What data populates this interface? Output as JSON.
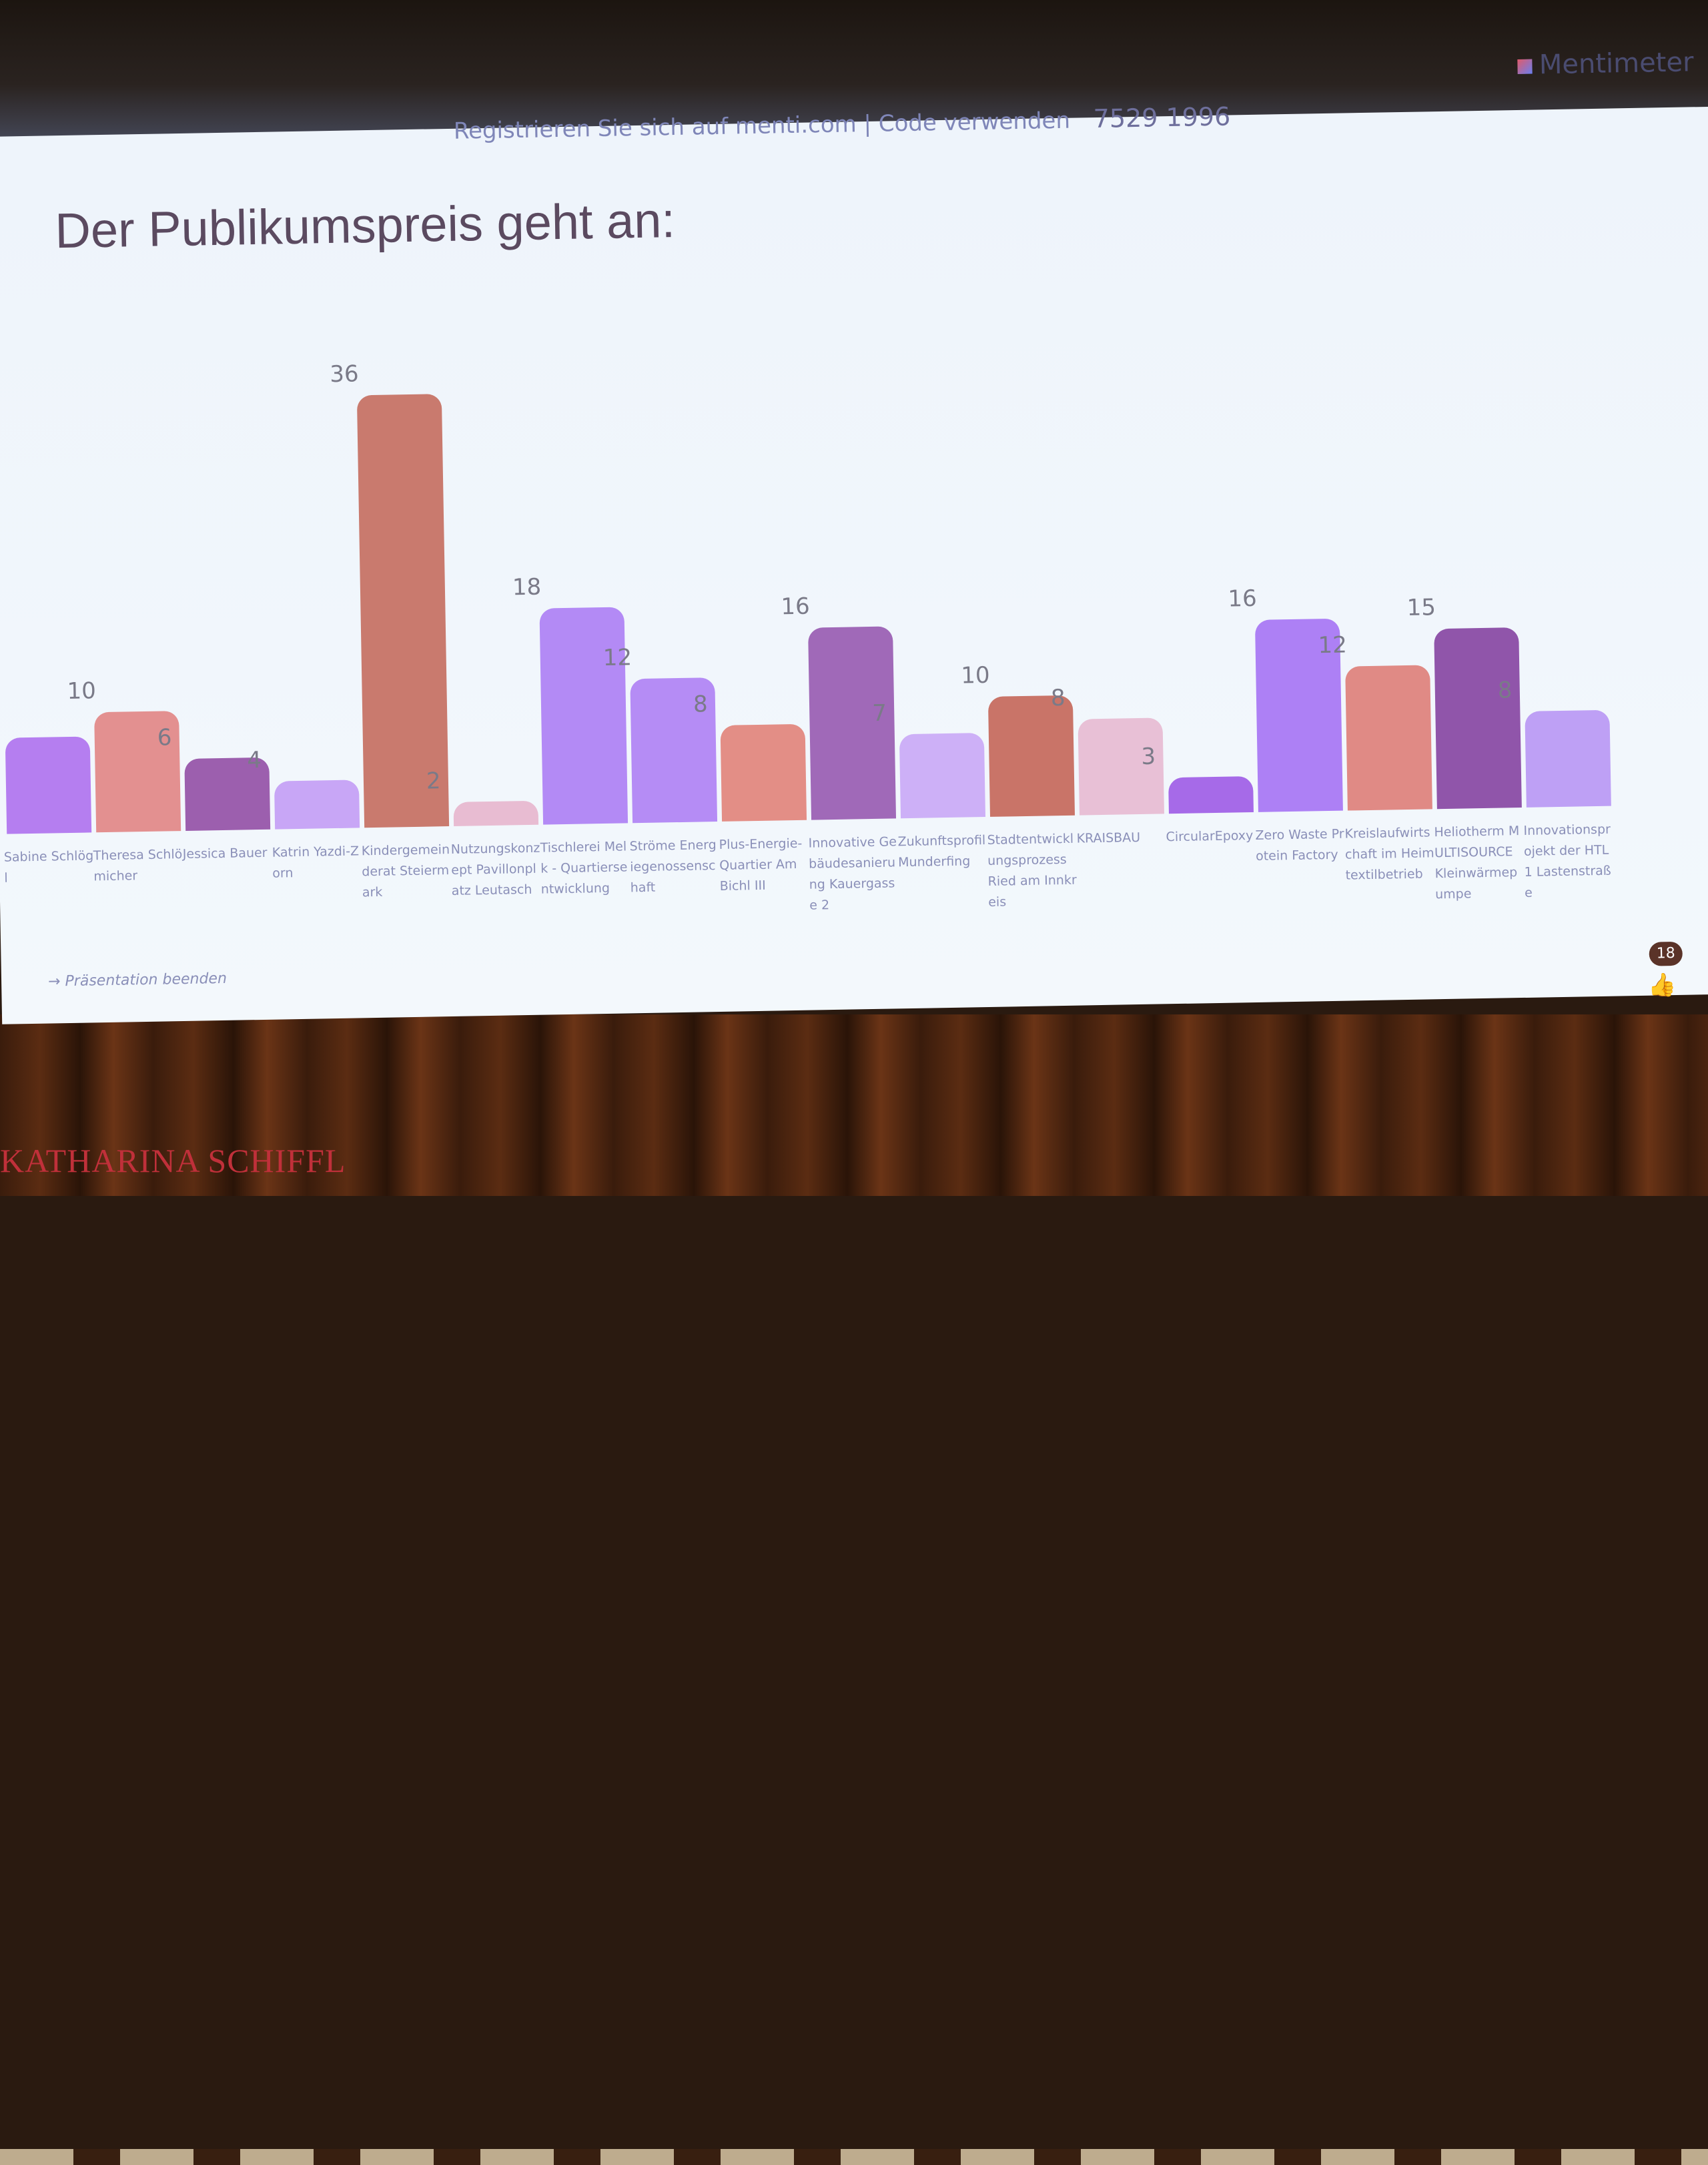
{
  "header": {
    "register_text": "Registrieren Sie sich auf menti.com | Code verwenden",
    "code": "7529 1996",
    "logo_text": "Mentimeter"
  },
  "title": "Der Publikumspreis geht an:",
  "footer": {
    "end_presentation": "Präsentation beenden",
    "participants": "18"
  },
  "watermark": "KATHARINA SCHIFFL",
  "chart_data": {
    "type": "bar",
    "title": "Der Publikumspreis geht an:",
    "categories": [
      "Sabine Schlögl",
      "Theresa Schlömicher",
      "Jessica Bauer",
      "Katrin Yazdi-Zorn",
      "Kindergemeinderat Steiermark",
      "Nutzungskonzept Pavillonplatz Leutasch",
      "Tischlerei Melk - Quartiersentwicklung",
      "Ströme Energiegenossenschaft",
      "Plus-Energie-Quartier Am Bichl III",
      "Innovative Gebäudesanierung Kauergasse 2",
      "Zukunftsprofil Munderfing",
      "Stadtentwicklungsprozess Ried am Innkreis",
      "KRAISBAU",
      "CircularEpoxy",
      "Zero Waste Protein Factory",
      "Kreislaufwirtschaft im Heimtextilbetrieb",
      "Heliotherm MULTISOURCE Kleinwärmepumpe",
      "Innovationsprojekt der HTL1 Lastenstraße"
    ],
    "values": [
      8,
      10,
      6,
      4,
      36,
      2,
      18,
      12,
      8,
      16,
      7,
      10,
      8,
      3,
      16,
      12,
      15,
      8
    ],
    "colors": [
      "#b57ef0",
      "#e39090",
      "#9c5fae",
      "#c8a6f6",
      "#c97a6e",
      "#e8bcd2",
      "#b38af5",
      "#b58cf5",
      "#e38e86",
      "#a069b8",
      "#cdb0f7",
      "#c97468",
      "#e8c0d6",
      "#a66ae8",
      "#ad80f5",
      "#e08a85",
      "#9055aa",
      "#bea0f5"
    ],
    "grid": false,
    "legend": "none"
  }
}
